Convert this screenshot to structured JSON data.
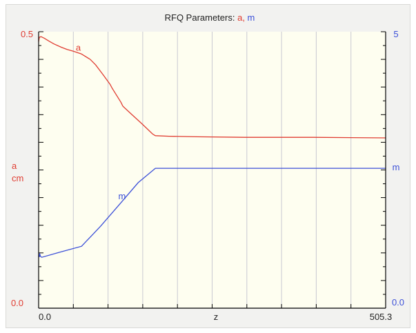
{
  "chart_data": {
    "type": "line",
    "title_prefix": "RFQ Parameters: ",
    "title_series": [
      "a",
      "m"
    ],
    "title_separator": ", ",
    "xlabel": "z",
    "xlim": [
      0.0,
      505.3
    ],
    "x_tick_labels": [
      "0.0",
      "505.3"
    ],
    "left_axis": {
      "label_lines": [
        "a",
        "cm"
      ],
      "ylim": [
        0.0,
        0.5
      ],
      "tick_labels": [
        "0.0",
        "0.5"
      ],
      "color": "#e03c31"
    },
    "right_axis": {
      "label_lines": [
        "m"
      ],
      "ylim": [
        0.0,
        5
      ],
      "tick_labels": [
        "0.0",
        "5"
      ],
      "color": "#3b4fd8"
    },
    "series": [
      {
        "name": "a",
        "axis": "left",
        "color": "#e03c31",
        "label_at": 57.7,
        "x": [
          0.0,
          1.0,
          3.5,
          8.4,
          15.0,
          22.0,
          33.0,
          41.5,
          50.0,
          62.0,
          75.0,
          83.0,
          94.0,
          104.0,
          107.0,
          120.0,
          122.0,
          123.0,
          135.0,
          150.0,
          166.0,
          170.0,
          190.0,
          230.0,
          300.0,
          400.0,
          505.3
        ],
        "y": [
          0.482,
          0.49,
          0.491,
          0.488,
          0.483,
          0.478,
          0.472,
          0.468,
          0.465,
          0.46,
          0.45,
          0.44,
          0.422,
          0.405,
          0.398,
          0.372,
          0.367,
          0.365,
          0.351,
          0.334,
          0.315,
          0.312,
          0.311,
          0.31,
          0.309,
          0.309,
          0.308
        ]
      },
      {
        "name": "m",
        "axis": "right",
        "color": "#3b4fd8",
        "label_at": 121.5,
        "x": [
          0.0,
          1.0,
          1.5,
          2.5,
          4.5,
          30.0,
          62.5,
          90.0,
          120.0,
          145.0,
          170.0,
          200.0,
          300.0,
          400.0,
          505.3
        ],
        "y": [
          0.93,
          0.93,
          0.99,
          0.94,
          0.92,
          1.01,
          1.12,
          1.48,
          1.91,
          2.27,
          2.53,
          2.53,
          2.53,
          2.53,
          2.53
        ]
      }
    ],
    "grid": {
      "vertical_lines": 10,
      "color": "#c9c9d2"
    },
    "plot_background": "#fefef0"
  }
}
